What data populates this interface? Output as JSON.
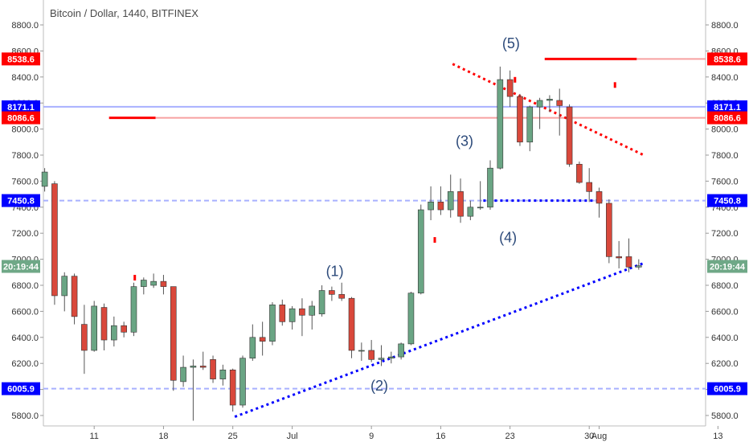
{
  "header": {
    "title": "Bitcoin / Dollar, 1440, BITFINEX"
  },
  "chart_data": {
    "type": "candlestick",
    "title": "Bitcoin / Dollar, 1440, BITFINEX",
    "ylim": [
      5700,
      9020
    ],
    "y_ticks": [
      5800,
      6000,
      6200,
      6400,
      6600,
      6800,
      7000,
      7200,
      7400,
      7600,
      7800,
      8000,
      8200,
      8400,
      8600,
      8800
    ],
    "y_tick_labels": [
      "5800.0",
      "6000.0",
      "6200.0",
      "6400.0",
      "6600.0",
      "6800.0",
      "7000.0",
      "7200.0",
      "7400.0",
      "7600.0",
      "7800.0",
      "8000.0",
      "8200.0",
      "8400.0",
      "8600.0",
      "8800.0"
    ],
    "x_ticks": [
      {
        "i": 5,
        "label": "11"
      },
      {
        "i": 12,
        "label": "18"
      },
      {
        "i": 19,
        "label": "25"
      },
      {
        "i": 25,
        "label": "Jul"
      },
      {
        "i": 33,
        "label": "9"
      },
      {
        "i": 40,
        "label": "16"
      },
      {
        "i": 47,
        "label": "23"
      },
      {
        "i": 55,
        "label": "30"
      },
      {
        "i": 56,
        "label": "Aug"
      },
      {
        "i": 68,
        "label": "13"
      }
    ],
    "candles": [
      {
        "o": 7560,
        "h": 7700,
        "l": 7520,
        "c": 7670
      },
      {
        "o": 7580,
        "h": 7600,
        "l": 6650,
        "c": 6720
      },
      {
        "o": 6720,
        "h": 6900,
        "l": 6600,
        "c": 6870
      },
      {
        "o": 6870,
        "h": 6890,
        "l": 6500,
        "c": 6560
      },
      {
        "o": 6500,
        "h": 6650,
        "l": 6120,
        "c": 6300
      },
      {
        "o": 6300,
        "h": 6680,
        "l": 6290,
        "c": 6640
      },
      {
        "o": 6630,
        "h": 6660,
        "l": 6300,
        "c": 6380
      },
      {
        "o": 6380,
        "h": 6560,
        "l": 6330,
        "c": 6490
      },
      {
        "o": 6490,
        "h": 6520,
        "l": 6400,
        "c": 6440
      },
      {
        "o": 6440,
        "h": 6820,
        "l": 6410,
        "c": 6790
      },
      {
        "o": 6790,
        "h": 6860,
        "l": 6730,
        "c": 6840
      },
      {
        "o": 6800,
        "h": 6890,
        "l": 6780,
        "c": 6830
      },
      {
        "o": 6830,
        "h": 6880,
        "l": 6730,
        "c": 6790
      },
      {
        "o": 6790,
        "h": 6790,
        "l": 5990,
        "c": 6070
      },
      {
        "o": 6060,
        "h": 6260,
        "l": 6020,
        "c": 6170
      },
      {
        "o": 6170,
        "h": 6230,
        "l": 5760,
        "c": 6180
      },
      {
        "o": 6180,
        "h": 6290,
        "l": 6150,
        "c": 6170
      },
      {
        "o": 6230,
        "h": 6260,
        "l": 6050,
        "c": 6080
      },
      {
        "o": 6080,
        "h": 6190,
        "l": 6030,
        "c": 6150
      },
      {
        "o": 6150,
        "h": 6160,
        "l": 5830,
        "c": 5880
      },
      {
        "o": 5880,
        "h": 6260,
        "l": 5860,
        "c": 6240
      },
      {
        "o": 6240,
        "h": 6500,
        "l": 6220,
        "c": 6400
      },
      {
        "o": 6400,
        "h": 6520,
        "l": 6260,
        "c": 6370
      },
      {
        "o": 6370,
        "h": 6670,
        "l": 6340,
        "c": 6650
      },
      {
        "o": 6650,
        "h": 6690,
        "l": 6490,
        "c": 6520
      },
      {
        "o": 6520,
        "h": 6640,
        "l": 6460,
        "c": 6620
      },
      {
        "o": 6620,
        "h": 6700,
        "l": 6410,
        "c": 6570
      },
      {
        "o": 6570,
        "h": 6680,
        "l": 6460,
        "c": 6640
      },
      {
        "o": 6580,
        "h": 6800,
        "l": 6560,
        "c": 6760
      },
      {
        "o": 6760,
        "h": 6790,
        "l": 6680,
        "c": 6730
      },
      {
        "o": 6730,
        "h": 6820,
        "l": 6680,
        "c": 6700
      },
      {
        "o": 6700,
        "h": 6710,
        "l": 6240,
        "c": 6300
      },
      {
        "o": 6300,
        "h": 6360,
        "l": 6220,
        "c": 6300
      },
      {
        "o": 6300,
        "h": 6380,
        "l": 6210,
        "c": 6230
      },
      {
        "o": 6230,
        "h": 6340,
        "l": 6180,
        "c": 6240
      },
      {
        "o": 6240,
        "h": 6290,
        "l": 6200,
        "c": 6250
      },
      {
        "o": 6250,
        "h": 6360,
        "l": 6230,
        "c": 6350
      },
      {
        "o": 6350,
        "h": 6750,
        "l": 6340,
        "c": 6740
      },
      {
        "o": 6740,
        "h": 7420,
        "l": 6730,
        "c": 7380
      },
      {
        "o": 7380,
        "h": 7560,
        "l": 7300,
        "c": 7440
      },
      {
        "o": 7440,
        "h": 7560,
        "l": 7340,
        "c": 7380
      },
      {
        "o": 7380,
        "h": 7650,
        "l": 7320,
        "c": 7520
      },
      {
        "o": 7520,
        "h": 7620,
        "l": 7280,
        "c": 7330
      },
      {
        "o": 7330,
        "h": 7450,
        "l": 7300,
        "c": 7400
      },
      {
        "o": 7400,
        "h": 7600,
        "l": 7380,
        "c": 7400
      },
      {
        "o": 7400,
        "h": 7760,
        "l": 7380,
        "c": 7700
      },
      {
        "o": 7700,
        "h": 8480,
        "l": 7690,
        "c": 8380
      },
      {
        "o": 8380,
        "h": 8450,
        "l": 8170,
        "c": 8250
      },
      {
        "o": 8250,
        "h": 8270,
        "l": 7870,
        "c": 7900
      },
      {
        "o": 7900,
        "h": 8180,
        "l": 7830,
        "c": 8170
      },
      {
        "o": 8170,
        "h": 8240,
        "l": 8000,
        "c": 8220
      },
      {
        "o": 8220,
        "h": 8260,
        "l": 8130,
        "c": 8230
      },
      {
        "o": 8220,
        "h": 8310,
        "l": 7950,
        "c": 8180
      },
      {
        "o": 8170,
        "h": 8190,
        "l": 7710,
        "c": 7730
      },
      {
        "o": 7730,
        "h": 7750,
        "l": 7580,
        "c": 7590
      },
      {
        "o": 7590,
        "h": 7700,
        "l": 7440,
        "c": 7520
      },
      {
        "o": 7520,
        "h": 7550,
        "l": 7320,
        "c": 7430
      },
      {
        "o": 7430,
        "h": 7460,
        "l": 6970,
        "c": 7020
      },
      {
        "o": 7020,
        "h": 7140,
        "l": 6930,
        "c": 7010
      },
      {
        "o": 7020,
        "h": 7160,
        "l": 6900,
        "c": 6940
      },
      {
        "o": 6940,
        "h": 7000,
        "l": 6920,
        "c": 6950
      }
    ],
    "wave_labels": [
      {
        "text": "(1)",
        "i": 29.3,
        "y": 6870
      },
      {
        "text": "(2)",
        "i": 33.8,
        "y": 5990
      },
      {
        "text": "(3)",
        "i": 42.4,
        "y": 7870
      },
      {
        "text": "(4)",
        "i": 46.8,
        "y": 7130
      },
      {
        "text": "(5)",
        "i": 47.1,
        "y": 8620
      }
    ],
    "price_levels": [
      {
        "value": 8538.6,
        "label": "8538.6",
        "color": "#ff0000",
        "line_color": "#f7a1a1"
      },
      {
        "value": 8171.1,
        "label": "8171.1",
        "color": "#0000ff",
        "line_color": "#a8b0ff"
      },
      {
        "value": 8086.6,
        "label": "8086.6",
        "color": "#ff0000",
        "line_color": "#f7a1a1"
      },
      {
        "value": 7450.8,
        "label": "7450.8",
        "color": "#0000ff",
        "line_color": "#a8b0ff"
      },
      {
        "value": 6005.9,
        "label": "6005.9",
        "color": "#0000ff",
        "line_color": "#a8b0ff"
      }
    ],
    "current_price_label": {
      "text": "20:19:44",
      "value": 6945,
      "color": "#6fa887"
    },
    "colors": {
      "up": "#6aa584",
      "down": "#d9483b",
      "wick": "#555555",
      "trend_red": "#ff0000",
      "trend_blue": "#0000ff"
    },
    "grid": false
  }
}
